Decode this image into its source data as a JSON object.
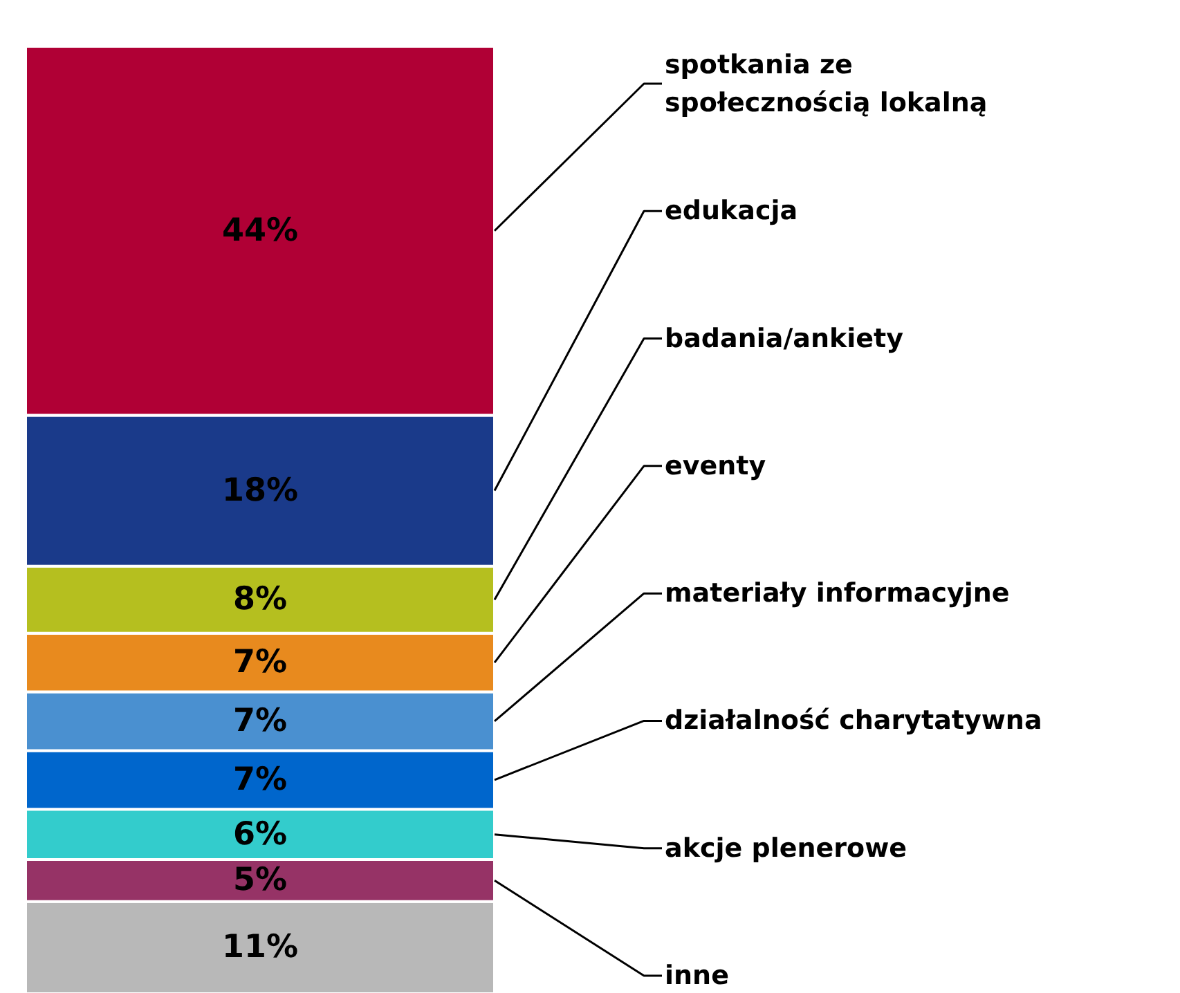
{
  "chart_data": {
    "type": "bar",
    "stacked": true,
    "categories": [
      null
    ],
    "series": [
      {
        "color": "#b8b8b8",
        "values": [
          11
        ],
        "value_labels": [
          "11%"
        ]
      },
      {
        "name": "inne",
        "color": "#963366",
        "values": [
          5
        ],
        "value_labels": [
          "5%"
        ]
      },
      {
        "name": "akcje plenerowe",
        "color": "#33cccc",
        "values": [
          6
        ],
        "value_labels": [
          "6%"
        ]
      },
      {
        "name": "działalność charytatywna",
        "color": "#0066cc",
        "values": [
          7
        ],
        "value_labels": [
          "7%"
        ]
      },
      {
        "name": "materiały informacyjne",
        "color": "#4a90d0",
        "values": [
          7
        ],
        "value_labels": [
          "7%"
        ]
      },
      {
        "name": "eventy",
        "color": "#e88a1e",
        "values": [
          7
        ],
        "value_labels": [
          "7%"
        ]
      },
      {
        "name": "badania/ankiety",
        "color": "#b5bf1f",
        "values": [
          8
        ],
        "value_labels": [
          "8%"
        ]
      },
      {
        "name": "edukacja",
        "color": "#1a3a8a",
        "values": [
          18
        ],
        "value_labels": [
          "18%"
        ]
      },
      {
        "name": "spotkania ze społecznością lokalną",
        "color": "#b00035",
        "values": [
          44
        ],
        "value_labels": [
          "44%"
        ]
      }
    ]
  }
}
